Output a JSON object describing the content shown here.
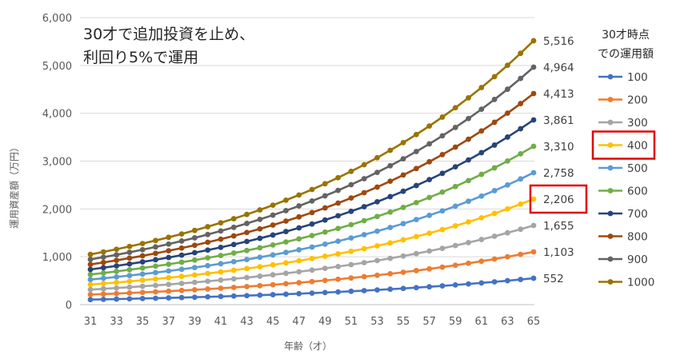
{
  "chart_data": {
    "type": "line",
    "title_lines": [
      "30才で追加投資を止め、",
      "利回り5%で運用"
    ],
    "xlabel": "年齢（才）",
    "ylabel": "運用資産額（万円）",
    "x": [
      31,
      32,
      33,
      34,
      35,
      36,
      37,
      38,
      39,
      40,
      41,
      42,
      43,
      44,
      45,
      46,
      47,
      48,
      49,
      50,
      51,
      52,
      53,
      54,
      55,
      56,
      57,
      58,
      59,
      60,
      61,
      62,
      63,
      64,
      65
    ],
    "xticks": [
      "31",
      "33",
      "35",
      "37",
      "39",
      "41",
      "43",
      "45",
      "47",
      "49",
      "51",
      "53",
      "55",
      "57",
      "59",
      "61",
      "63",
      "65"
    ],
    "ylim": [
      0,
      6000
    ],
    "yticks": [
      "0",
      "1,000",
      "2,000",
      "3,000",
      "4,000",
      "5,000",
      "6,000"
    ],
    "growth_rate": 0.05,
    "legend_title_lines": [
      "30才時点",
      "での運用額"
    ],
    "highlight": [
      "400",
      "2,206"
    ],
    "series": [
      {
        "name": "100",
        "start": 100,
        "color": "#4472c4",
        "end_label": "552"
      },
      {
        "name": "200",
        "start": 200,
        "color": "#ed7d31",
        "end_label": "1,103"
      },
      {
        "name": "300",
        "start": 300,
        "color": "#a5a5a5",
        "end_label": "1,655"
      },
      {
        "name": "400",
        "start": 400,
        "color": "#ffc000",
        "end_label": "2,206"
      },
      {
        "name": "500",
        "start": 500,
        "color": "#5b9bd5",
        "end_label": "2,758"
      },
      {
        "name": "600",
        "start": 600,
        "color": "#70ad47",
        "end_label": "3,310"
      },
      {
        "name": "700",
        "start": 700,
        "color": "#264478",
        "end_label": "3,861"
      },
      {
        "name": "800",
        "start": 800,
        "color": "#9e480e",
        "end_label": "4,413"
      },
      {
        "name": "900",
        "start": 900,
        "color": "#636363",
        "end_label": "4,964"
      },
      {
        "name": "1000",
        "start": 1000,
        "color": "#997300",
        "end_label": "5,516"
      }
    ]
  }
}
